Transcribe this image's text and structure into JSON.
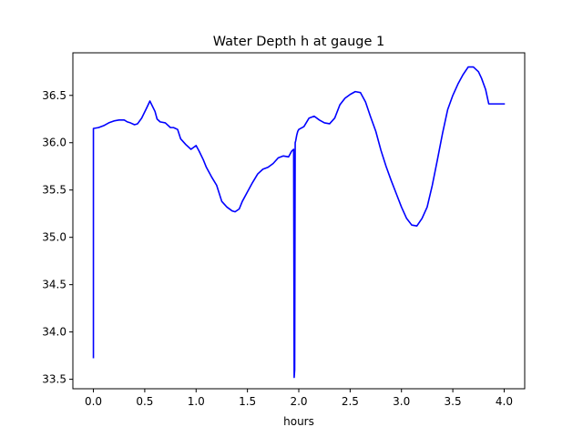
{
  "chart_data": {
    "type": "line",
    "title": "Water Depth h at gauge 1",
    "xlabel": "hours",
    "ylabel": "",
    "xlim": [
      -0.2,
      4.2
    ],
    "ylim": [
      33.4,
      36.95
    ],
    "xticks": [
      0.0,
      0.5,
      1.0,
      1.5,
      2.0,
      2.5,
      3.0,
      3.5,
      4.0
    ],
    "xtick_labels": [
      "0.0",
      "0.5",
      "1.0",
      "1.5",
      "2.0",
      "2.5",
      "3.0",
      "3.5",
      "4.0"
    ],
    "yticks": [
      33.5,
      34.0,
      34.5,
      35.0,
      35.5,
      36.0,
      36.5
    ],
    "ytick_labels": [
      "33.5",
      "34.0",
      "34.5",
      "35.0",
      "35.5",
      "36.0",
      "36.5"
    ],
    "grid": false,
    "series": [
      {
        "color": "#0000ff",
        "x": [
          0.0,
          0.0,
          0.05,
          0.1,
          0.15,
          0.2,
          0.25,
          0.3,
          0.33,
          0.36,
          0.4,
          0.43,
          0.47,
          0.52,
          0.55,
          0.6,
          0.62,
          0.65,
          0.7,
          0.75,
          0.78,
          0.82,
          0.85,
          0.9,
          0.95,
          1.0,
          1.03,
          1.07,
          1.1,
          1.15,
          1.2,
          1.25,
          1.3,
          1.35,
          1.38,
          1.42,
          1.45,
          1.5,
          1.55,
          1.6,
          1.65,
          1.7,
          1.75,
          1.8,
          1.85,
          1.9,
          1.93,
          1.95,
          1.955,
          1.96,
          1.965,
          1.97,
          1.975,
          1.98,
          1.99,
          2.0,
          2.05,
          2.1,
          2.15,
          2.2,
          2.25,
          2.3,
          2.35,
          2.4,
          2.45,
          2.5,
          2.55,
          2.6,
          2.65,
          2.7,
          2.75,
          2.8,
          2.85,
          2.9,
          2.95,
          3.0,
          3.05,
          3.1,
          3.15,
          3.2,
          3.25,
          3.3,
          3.35,
          3.4,
          3.45,
          3.5,
          3.55,
          3.6,
          3.65,
          3.7,
          3.75,
          3.78,
          3.82,
          3.85,
          3.9,
          3.95,
          4.0
        ],
        "y": [
          33.73,
          36.15,
          36.16,
          36.18,
          36.21,
          36.23,
          36.24,
          36.24,
          36.22,
          36.21,
          36.19,
          36.2,
          36.26,
          36.37,
          36.44,
          36.33,
          36.25,
          36.22,
          36.21,
          36.16,
          36.16,
          36.14,
          36.04,
          35.98,
          35.93,
          35.97,
          35.91,
          35.82,
          35.74,
          35.64,
          35.55,
          35.38,
          35.32,
          35.28,
          35.27,
          35.3,
          35.38,
          35.48,
          35.58,
          35.67,
          35.72,
          35.74,
          35.78,
          35.84,
          35.86,
          35.85,
          35.91,
          35.93,
          33.52,
          33.6,
          36.0,
          36.02,
          36.05,
          36.08,
          36.12,
          36.14,
          36.17,
          36.26,
          36.28,
          36.24,
          36.21,
          36.2,
          36.26,
          36.4,
          36.47,
          36.51,
          36.54,
          36.53,
          36.43,
          36.27,
          36.12,
          35.92,
          35.75,
          35.6,
          35.46,
          35.32,
          35.2,
          35.13,
          35.12,
          35.2,
          35.32,
          35.55,
          35.82,
          36.1,
          36.35,
          36.5,
          36.62,
          36.72,
          36.8,
          36.8,
          36.75,
          36.68,
          36.56,
          36.41,
          36.41,
          36.41,
          36.41
        ]
      }
    ]
  }
}
